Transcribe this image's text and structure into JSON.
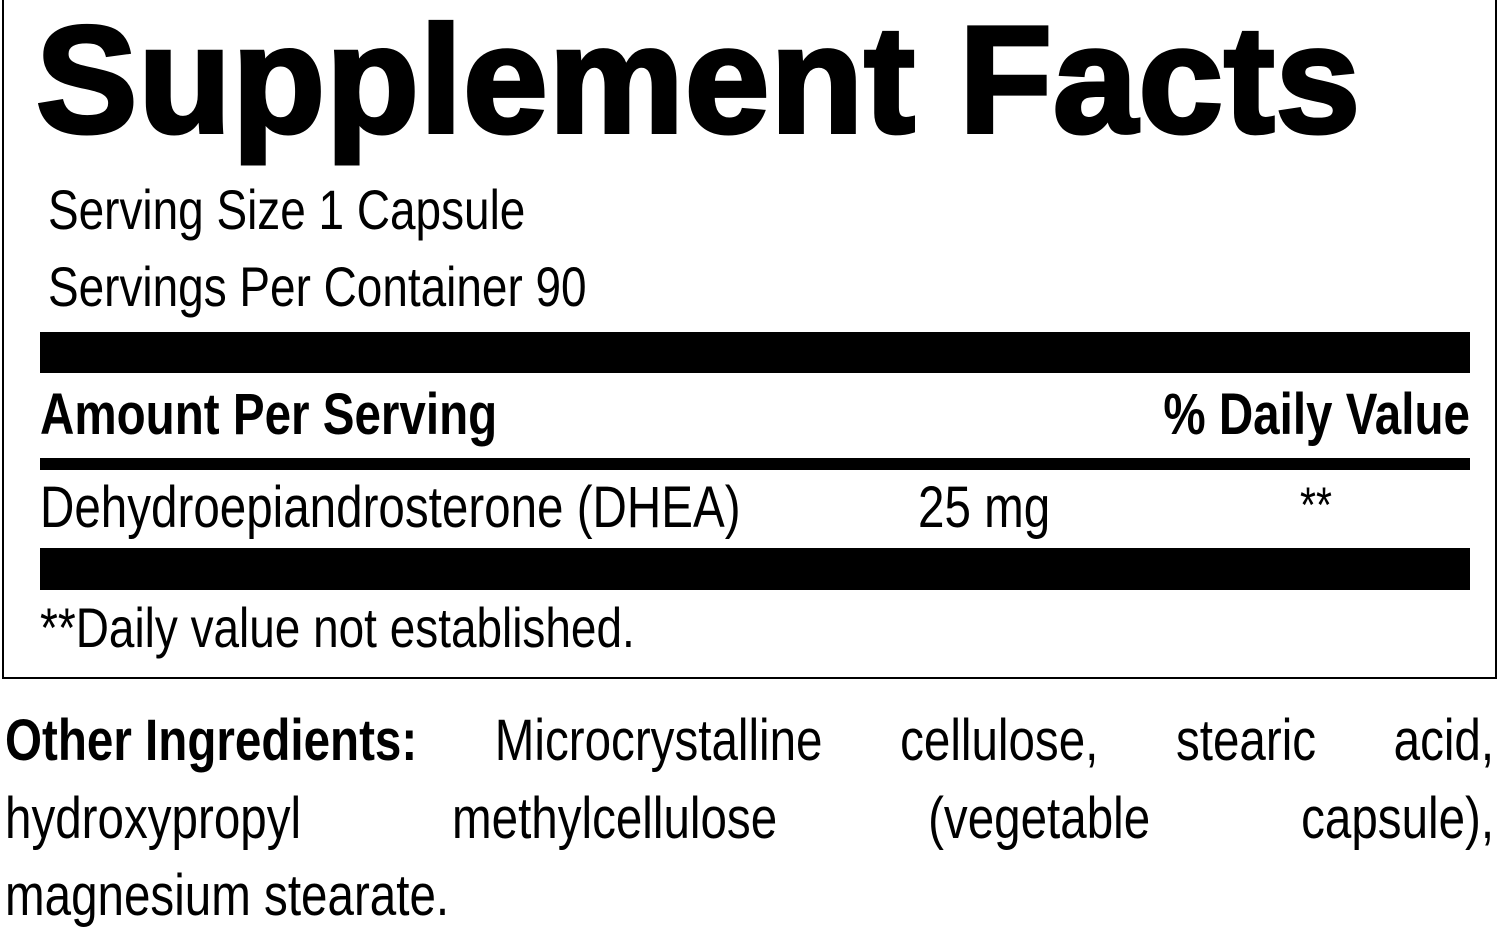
{
  "title": "Supplement Facts",
  "serving_size": "Serving Size 1 Capsule",
  "servings_per_container": "Servings Per Container 90",
  "header": {
    "amount": "Amount Per Serving",
    "daily_value": "% Daily Value"
  },
  "ingredients": [
    {
      "name": "Dehydroepiandrosterone (DHEA)",
      "amount": "25 mg",
      "daily_value": "**"
    }
  ],
  "footnote": "**Daily value not established.",
  "other_ingredients": {
    "label": "Other Ingredients:",
    "line1_words": [
      "Microcrystalline",
      "cellulose,",
      "stearic",
      "acid,"
    ],
    "line2_words": [
      "hydroxypropyl",
      "methylcellulose",
      "(vegetable",
      "capsule),"
    ],
    "line3": "magnesium stearate."
  }
}
